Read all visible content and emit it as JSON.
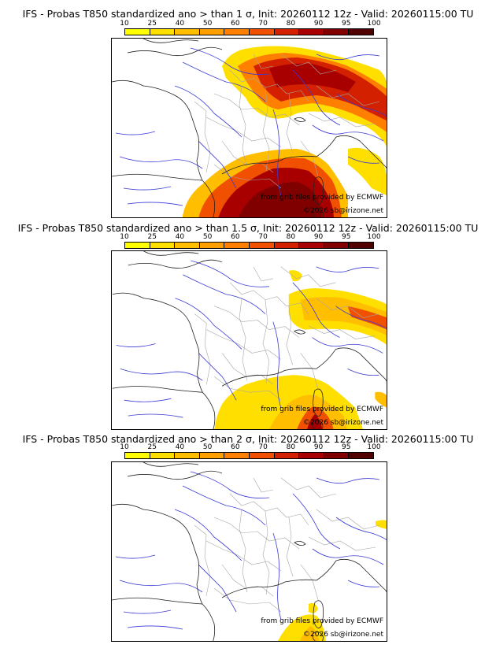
{
  "colors": {
    "scale": [
      "#ffff00",
      "#ffdf00",
      "#ffbf00",
      "#ff9f00",
      "#ff7f00",
      "#f05000",
      "#d22000",
      "#a80000",
      "#800000",
      "#500000"
    ],
    "rivers": "#3a3ad6",
    "borders": "#9a9a9a",
    "coast": "#222222"
  },
  "colorbar": {
    "ticks": [
      "10",
      "25",
      "40",
      "50",
      "60",
      "70",
      "80",
      "90",
      "95",
      "100"
    ]
  },
  "credits": {
    "source": "from grib files provided by ECMWF",
    "watermark": "©2026 sb@irizone.net"
  },
  "panels": [
    {
      "title": "IFS - Probas T850  standardized ano > than 1 σ, Init: 20260112 12z - Valid: 20260115:00 TU"
    },
    {
      "title": "IFS - Probas T850  standardized ano > than 1.5 σ, Init: 20260112 12z - Valid: 20260115:00 TU"
    },
    {
      "title": "IFS - Probas T850  standardized ano > than 2 σ, Init: 20260112 12z - Valid: 20260115:00 TU"
    }
  ]
}
